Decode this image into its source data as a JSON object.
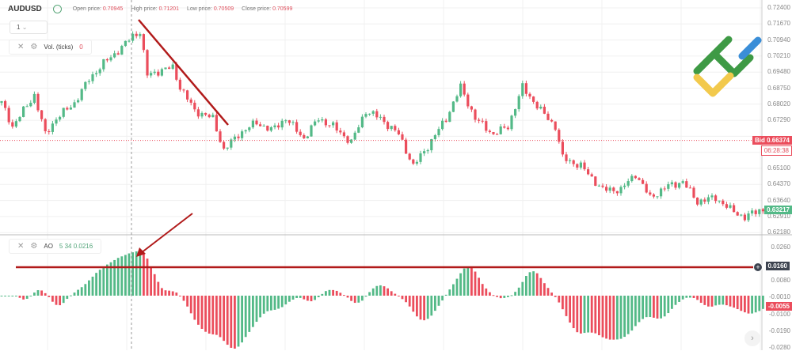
{
  "header": {
    "symbol": "AUDUSD",
    "open_label": "Open price:",
    "open": "0.70945",
    "high_label": "High price:",
    "high": "0.71201",
    "low_label": "Low price:",
    "low": "0.70509",
    "close_label": "Close price:",
    "close": "0.70599"
  },
  "timeframe": {
    "value": "1"
  },
  "volume_indicator": {
    "label": "Vol. (ticks)",
    "value": "0"
  },
  "ao_indicator": {
    "label": "AO",
    "params": "5 34",
    "value": "0.0216"
  },
  "price_axis": [
    "0.72400",
    "0.71670",
    "0.70940",
    "0.70210",
    "0.69480",
    "0.68750",
    "0.68020",
    "0.67290",
    "0.65100",
    "0.64370",
    "0.63640",
    "0.62910",
    "0.62180"
  ],
  "bid_tag": {
    "label": "Bid 0.66374",
    "timer": "06:28:38",
    "price": 0.66374
  },
  "last_price_tag": {
    "label": "0.63217"
  },
  "ao_axis": [
    "0.0260",
    "0.0080",
    "-0.0010",
    "-0.0100",
    "-0.0190",
    "-0.0280"
  ],
  "ao_crosshair_tag": {
    "label": "0.0160"
  },
  "ao_last_tag": {
    "label": "-0.0055"
  },
  "colors": {
    "up": "#53b987",
    "down": "#eb4d5c",
    "annotation": "#b11a1a"
  },
  "chart_data": {
    "type": "candlestick",
    "price_range": [
      0.6218,
      0.724
    ],
    "ao_range": [
      -0.028,
      0.026
    ],
    "price_path": [
      [
        0,
        0.6808
      ],
      [
        3,
        0.6701
      ],
      [
        9,
        0.6844
      ],
      [
        12,
        0.6665
      ],
      [
        15,
        0.6737
      ],
      [
        20,
        0.6808
      ],
      [
        24,
        0.6916
      ],
      [
        28,
        0.6988
      ],
      [
        33,
        0.706
      ],
      [
        36,
        0.7114
      ],
      [
        38,
        0.7132
      ],
      [
        40,
        0.6934
      ],
      [
        43,
        0.6952
      ],
      [
        47,
        0.697
      ],
      [
        49,
        0.688
      ],
      [
        53,
        0.6773
      ],
      [
        58,
        0.6737
      ],
      [
        61,
        0.6593
      ],
      [
        65,
        0.6665
      ],
      [
        70,
        0.6719
      ],
      [
        74,
        0.6683
      ],
      [
        78,
        0.6737
      ],
      [
        83,
        0.6647
      ],
      [
        87,
        0.6737
      ],
      [
        91,
        0.6701
      ],
      [
        96,
        0.6629
      ],
      [
        100,
        0.6773
      ],
      [
        104,
        0.6737
      ],
      [
        109,
        0.6665
      ],
      [
        113,
        0.6521
      ],
      [
        117,
        0.6611
      ],
      [
        122,
        0.6737
      ],
      [
        126,
        0.688
      ],
      [
        130,
        0.6737
      ],
      [
        135,
        0.6665
      ],
      [
        139,
        0.6701
      ],
      [
        143,
        0.688
      ],
      [
        148,
        0.6773
      ],
      [
        152,
        0.6701
      ],
      [
        154,
        0.6557
      ],
      [
        159,
        0.6521
      ],
      [
        165,
        0.6413
      ],
      [
        170,
        0.6413
      ],
      [
        174,
        0.6485
      ],
      [
        178,
        0.6377
      ],
      [
        183,
        0.6431
      ],
      [
        187,
        0.6449
      ],
      [
        191,
        0.6359
      ],
      [
        196,
        0.6377
      ],
      [
        200,
        0.6323
      ],
      [
        204,
        0.6287
      ],
      [
        208,
        0.6322
      ]
    ]
  }
}
